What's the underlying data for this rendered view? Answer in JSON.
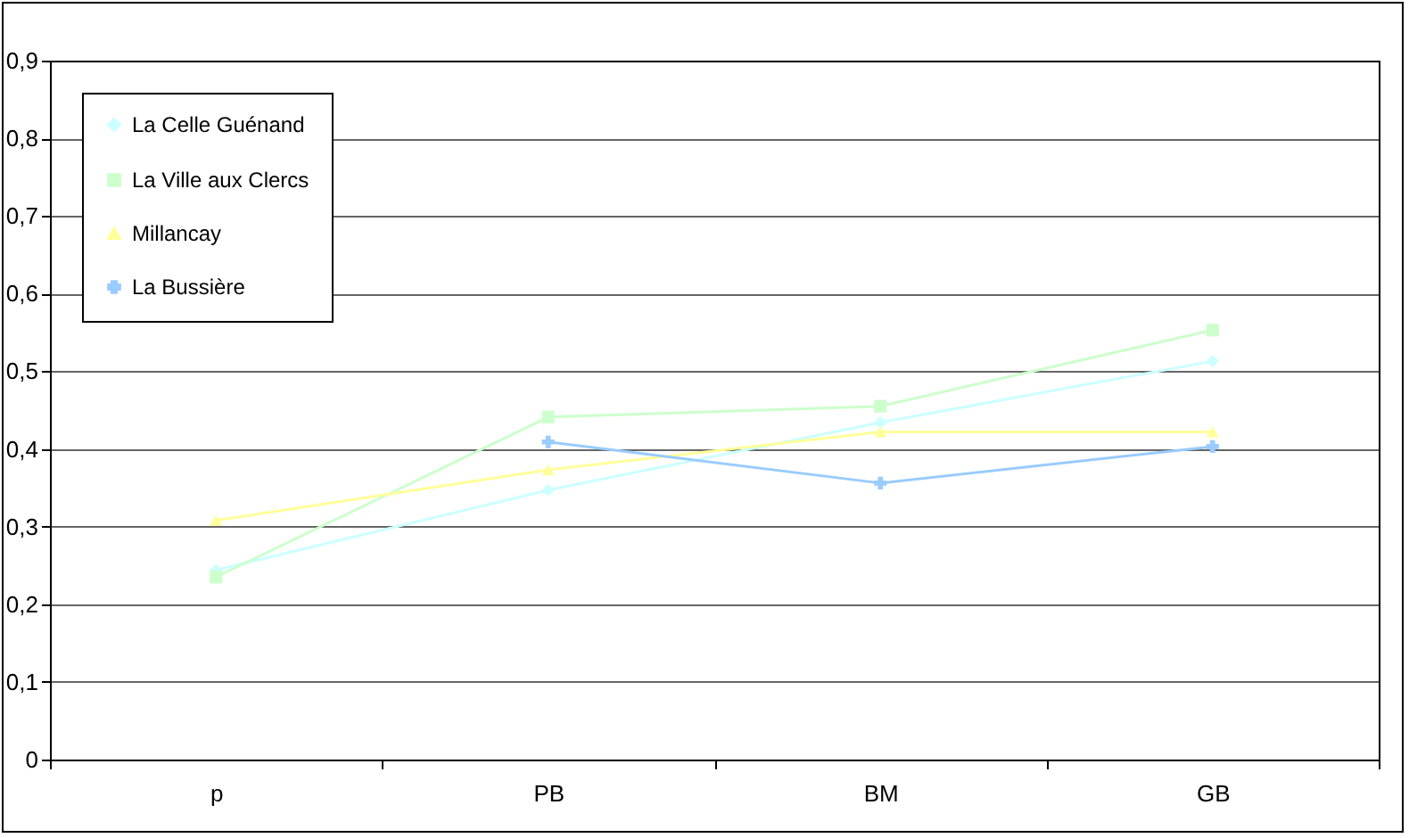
{
  "chart_data": {
    "type": "line",
    "categories": [
      "p",
      "PB",
      "BM",
      "GB"
    ],
    "series": [
      {
        "name": "La Celle Guénand",
        "color": "#ccffff",
        "marker": "diamond",
        "values": [
          0.244,
          0.347,
          0.434,
          0.513
        ]
      },
      {
        "name": "La Ville aux Clercs",
        "color": "#ccffcc",
        "marker": "square",
        "values": [
          0.235,
          0.441,
          0.455,
          0.553
        ]
      },
      {
        "name": "Millancay",
        "color": "#ffff99",
        "marker": "triangle",
        "values": [
          0.308,
          0.373,
          0.422,
          0.422
        ]
      },
      {
        "name": "La Bussière",
        "color": "#99ccff",
        "marker": "cross",
        "values": [
          null,
          0.409,
          0.356,
          0.403
        ]
      }
    ],
    "ylim": [
      0,
      0.9
    ],
    "yticks": [
      {
        "value": 0,
        "label": "0"
      },
      {
        "value": 0.1,
        "label": "0,1"
      },
      {
        "value": 0.2,
        "label": "0,2"
      },
      {
        "value": 0.3,
        "label": "0,3"
      },
      {
        "value": 0.4,
        "label": "0,4"
      },
      {
        "value": 0.5,
        "label": "0,5"
      },
      {
        "value": 0.6,
        "label": "0,6"
      },
      {
        "value": 0.7,
        "label": "0,7"
      },
      {
        "value": 0.8,
        "label": "0,8"
      },
      {
        "value": 0.9,
        "label": "0,9"
      }
    ],
    "grid": "y",
    "legend": "top left",
    "line_style": "solid"
  }
}
